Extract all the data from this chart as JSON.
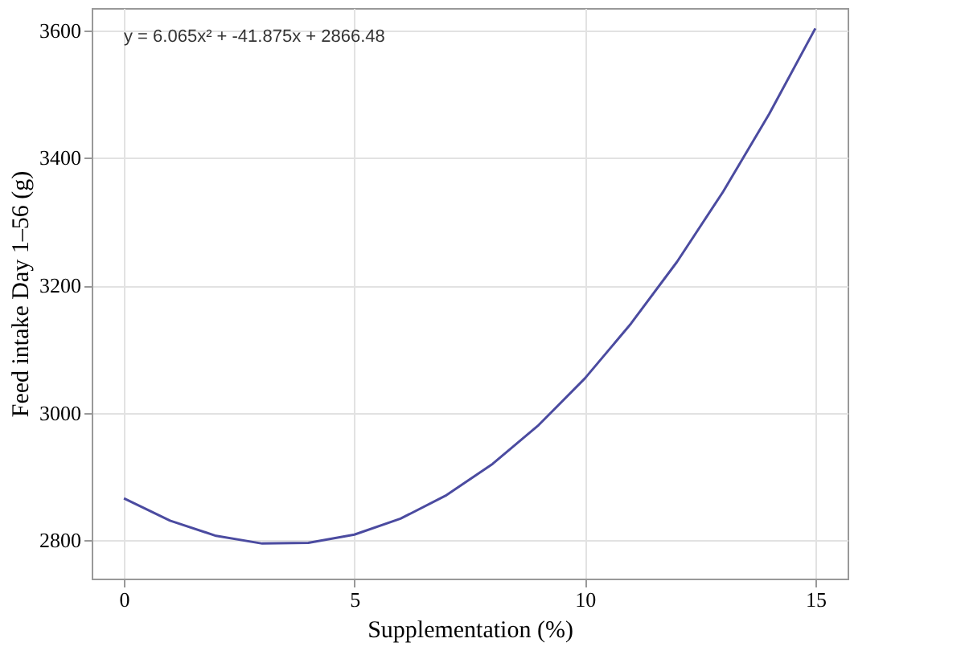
{
  "chart_data": {
    "type": "line",
    "xlabel": "Supplementation (%)",
    "ylabel": "Feed intake Day 1–56 (g)",
    "x": [
      0,
      1,
      2,
      3,
      4,
      5,
      6,
      7,
      8,
      9,
      10,
      11,
      12,
      13,
      14,
      15
    ],
    "series": [
      {
        "color": "#4b4ba0",
        "values": [
          2866,
          2831,
          2807,
          2795,
          2796,
          2809,
          2834,
          2871,
          2920,
          2981,
          3054,
          3140,
          3237,
          3347,
          3469,
          3603
        ]
      }
    ],
    "xlim": [
      -0.7,
      15.7
    ],
    "xticks": [
      0,
      5,
      10,
      15
    ],
    "ylim": [
      2740,
      3635
    ],
    "yticks": [
      2800,
      3000,
      3200,
      3400,
      3600
    ],
    "grid": true,
    "marker": "none",
    "line_style": "solid",
    "annotations": [
      "y = 6.065x² + -41.875x + 2866.48"
    ]
  }
}
